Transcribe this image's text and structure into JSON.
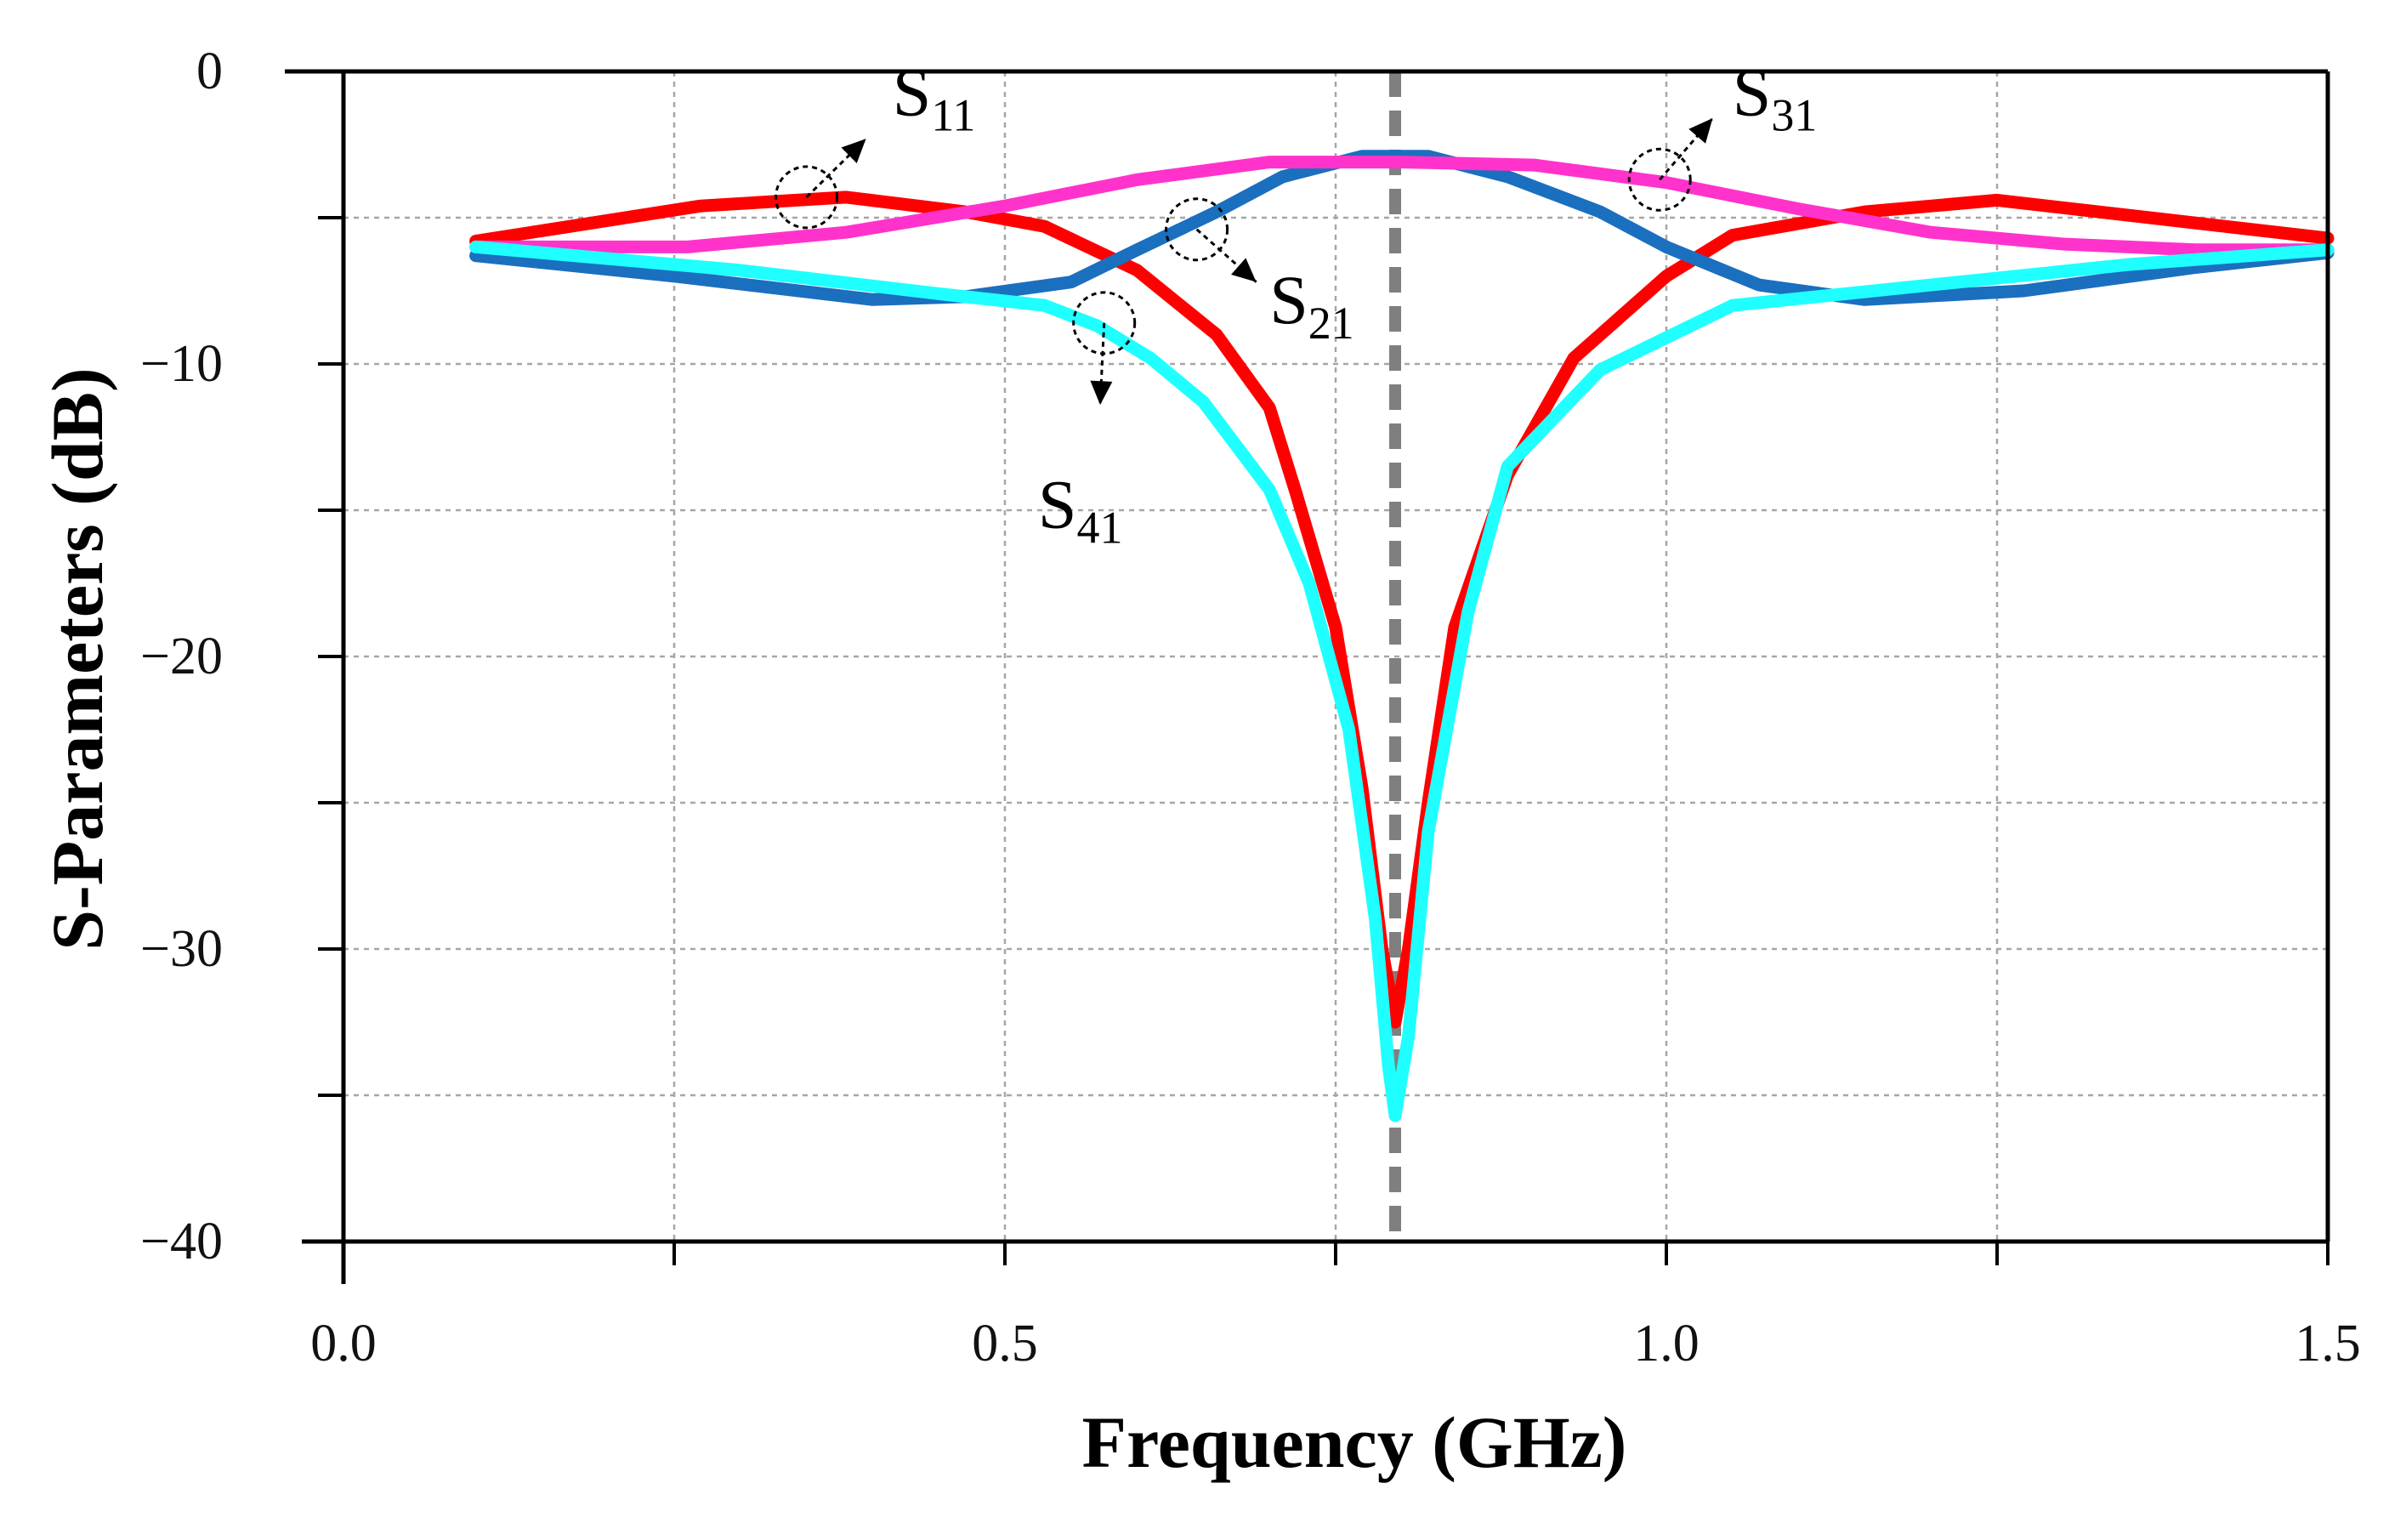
{
  "chart_data": {
    "type": "line",
    "title": "",
    "xlabel": "Frequency  (GHz)",
    "ylabel": "S-Parameters (dB)",
    "xlim": [
      0.0,
      1.5
    ],
    "ylim": [
      -40,
      0
    ],
    "x_ticks": [
      0.0,
      0.25,
      0.5,
      0.75,
      1.0,
      1.25,
      1.5
    ],
    "x_tick_labels": [
      {
        "value": 0.0,
        "label": "0.0"
      },
      {
        "value": 0.5,
        "label": "0.5"
      },
      {
        "value": 1.0,
        "label": "1.0"
      },
      {
        "value": 1.5,
        "label": "1.5"
      }
    ],
    "y_ticks": [
      0,
      -5,
      -10,
      -15,
      -20,
      -25,
      -30,
      -35,
      -40
    ],
    "y_tick_labels": [
      {
        "value": 0,
        "label": "0"
      },
      {
        "value": -10,
        "label": "−10"
      },
      {
        "value": -20,
        "label": "−20"
      },
      {
        "value": -30,
        "label": "−30"
      },
      {
        "value": -40,
        "label": "−40"
      }
    ],
    "grid": true,
    "reference_line": {
      "x": 0.795,
      "style": "dashed",
      "color": "#7f7f7f"
    },
    "series": [
      {
        "name": "S11",
        "main": "S",
        "sub": "11",
        "color": "#ff0000",
        "points": [
          [
            0.1,
            -5.8
          ],
          [
            0.27,
            -4.6
          ],
          [
            0.38,
            -4.3
          ],
          [
            0.47,
            -4.8
          ],
          [
            0.53,
            -5.3
          ],
          [
            0.6,
            -6.8
          ],
          [
            0.66,
            -9.0
          ],
          [
            0.7,
            -11.5
          ],
          [
            0.72,
            -14.4
          ],
          [
            0.75,
            -19
          ],
          [
            0.77,
            -24.5
          ],
          [
            0.785,
            -30
          ],
          [
            0.795,
            -32.5
          ],
          [
            0.805,
            -30
          ],
          [
            0.82,
            -25
          ],
          [
            0.84,
            -19
          ],
          [
            0.88,
            -13.8
          ],
          [
            0.93,
            -9.8
          ],
          [
            1.0,
            -7.0
          ],
          [
            1.05,
            -5.6
          ],
          [
            1.15,
            -4.8
          ],
          [
            1.25,
            -4.4
          ],
          [
            1.5,
            -5.7
          ]
        ]
      },
      {
        "name": "S21",
        "main": "S",
        "sub": "21",
        "color": "#1b6fbf",
        "points": [
          [
            0.1,
            -6.3
          ],
          [
            0.25,
            -7.0
          ],
          [
            0.4,
            -7.8
          ],
          [
            0.47,
            -7.7
          ],
          [
            0.55,
            -7.2
          ],
          [
            0.6,
            -6.1
          ],
          [
            0.66,
            -4.8
          ],
          [
            0.71,
            -3.6
          ],
          [
            0.77,
            -2.9
          ],
          [
            0.82,
            -2.9
          ],
          [
            0.88,
            -3.6
          ],
          [
            0.95,
            -4.8
          ],
          [
            1.0,
            -6.0
          ],
          [
            1.07,
            -7.3
          ],
          [
            1.15,
            -7.8
          ],
          [
            1.27,
            -7.5
          ],
          [
            1.4,
            -6.7
          ],
          [
            1.5,
            -6.2
          ]
        ]
      },
      {
        "name": "S31",
        "main": "S",
        "sub": "31",
        "color": "#ff33cc",
        "points": [
          [
            0.1,
            -6.0
          ],
          [
            0.26,
            -6.0
          ],
          [
            0.38,
            -5.5
          ],
          [
            0.5,
            -4.6
          ],
          [
            0.6,
            -3.7
          ],
          [
            0.7,
            -3.1
          ],
          [
            0.8,
            -3.1
          ],
          [
            0.9,
            -3.2
          ],
          [
            1.0,
            -3.8
          ],
          [
            1.1,
            -4.7
          ],
          [
            1.2,
            -5.5
          ],
          [
            1.3,
            -5.9
          ],
          [
            1.4,
            -6.1
          ],
          [
            1.5,
            -6.1
          ]
        ]
      },
      {
        "name": "S41",
        "main": "S",
        "sub": "41",
        "color": "#1fffff",
        "points": [
          [
            0.1,
            -6.0
          ],
          [
            0.3,
            -6.8
          ],
          [
            0.45,
            -7.6
          ],
          [
            0.53,
            -8.0
          ],
          [
            0.57,
            -8.7
          ],
          [
            0.61,
            -9.8
          ],
          [
            0.65,
            -11.3
          ],
          [
            0.7,
            -14.3
          ],
          [
            0.73,
            -17.5
          ],
          [
            0.76,
            -22.5
          ],
          [
            0.78,
            -29
          ],
          [
            0.79,
            -34
          ],
          [
            0.795,
            -35.7
          ],
          [
            0.805,
            -33
          ],
          [
            0.82,
            -26
          ],
          [
            0.85,
            -18.5
          ],
          [
            0.88,
            -13.5
          ],
          [
            0.95,
            -10.2
          ],
          [
            1.05,
            -8.0
          ],
          [
            1.2,
            -7.3
          ],
          [
            1.35,
            -6.6
          ],
          [
            1.5,
            -6.1
          ]
        ]
      }
    ]
  }
}
